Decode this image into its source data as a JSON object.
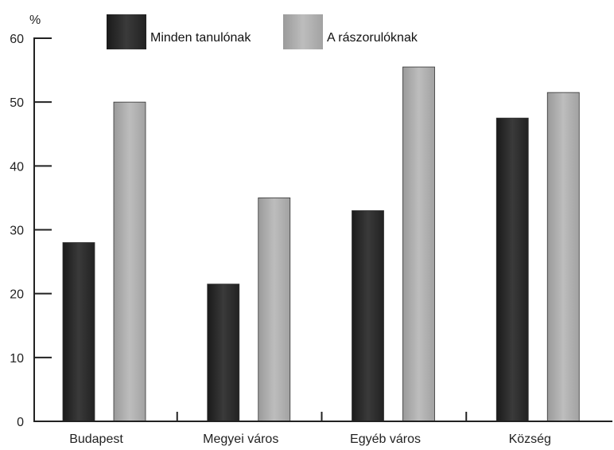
{
  "chart_data": {
    "type": "bar",
    "title": "",
    "xlabel": "",
    "ylabel": "%",
    "ylim": [
      0,
      60
    ],
    "yticks": [
      0,
      10,
      20,
      30,
      40,
      50,
      60
    ],
    "categories": [
      "Budapest",
      "Megyei város",
      "Egyéb város",
      "Község"
    ],
    "series": [
      {
        "name": "Minden tanulónak",
        "values": [
          28,
          21.5,
          33,
          47.5
        ],
        "color": "#2a2a2a"
      },
      {
        "name": "A rászorulóknak",
        "values": [
          50,
          35,
          55.5,
          51.5
        ],
        "color": "#a8a8a8"
      }
    ],
    "grid": false,
    "legend": "top"
  }
}
